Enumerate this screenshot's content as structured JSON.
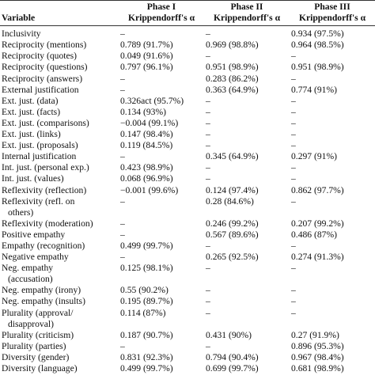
{
  "table": {
    "header": [
      [
        "Variable"
      ],
      [
        "Phase I",
        "Krippendorff's α"
      ],
      [
        "Phase II",
        "Krippendorff's α"
      ],
      [
        "Phase III",
        "Krippendorff's α"
      ]
    ],
    "rows": [
      [
        [
          "Inclusivity"
        ],
        "–",
        "–",
        "0.934 (97.5%)"
      ],
      [
        [
          "Reciprocity (mentions)"
        ],
        "0.789 (91.7%)",
        "0.969 (98.8%)",
        "0.964 (98.5%)"
      ],
      [
        [
          "Reciprocity (quotes)"
        ],
        "0.049 (91.6%)",
        "–",
        "–"
      ],
      [
        [
          "Reciprocity (questions)"
        ],
        "0.797 (96.1%)",
        "0.951 (98.9%)",
        "0.951 (98.9%)"
      ],
      [
        [
          "Reciprocity (answers)"
        ],
        "–",
        "0.283 (86.2%)",
        "–"
      ],
      [
        [
          "External justification"
        ],
        "–",
        "0.363 (64.9%)",
        "0.774 (91%)"
      ],
      [
        [
          "Ext. just. (data)"
        ],
        "0.326act (95.7%)",
        "–",
        "–"
      ],
      [
        [
          "Ext. just. (facts)"
        ],
        "0.134 (93%)",
        "–",
        "–"
      ],
      [
        [
          "Ext. just. (comparisons)"
        ],
        "−0.004 (99.1%)",
        "–",
        "–"
      ],
      [
        [
          "Ext. just. (links)"
        ],
        "0.147 (98.4%)",
        "–",
        "–"
      ],
      [
        [
          "Ext. just. (proposals)"
        ],
        "0.119 (84.5%)",
        "–",
        "–"
      ],
      [
        [
          "Internal justification"
        ],
        "–",
        "0.345 (64.9%)",
        "0.297 (91%)"
      ],
      [
        [
          "Int. just. (personal exp.)"
        ],
        "0.423 (98.9%)",
        "–",
        "–"
      ],
      [
        [
          "Int. just. (values)"
        ],
        "0.068 (96.9%)",
        "–",
        "–"
      ],
      [
        [
          "Reflexivity (reflection)"
        ],
        "−0.001 (99.6%)",
        "0.124 (97.4%)",
        "0.862 (97.7%)"
      ],
      [
        [
          "Reflexivity (refl. on",
          "others)"
        ],
        "–",
        "0.28 (84.6%)",
        "–"
      ],
      [
        [
          "Reflexivity (moderation)"
        ],
        "–",
        "0.246 (99.2%)",
        "0.207 (99.2%)"
      ],
      [
        [
          "Positive empathy"
        ],
        "–",
        "0.567 (89.6%)",
        "0.486 (87%)"
      ],
      [
        [
          "Empathy (recognition)"
        ],
        "0.499 (99.7%)",
        "–",
        "–"
      ],
      [
        [
          "Negative empathy"
        ],
        "–",
        "0.265 (92.5%)",
        "0.274 (91.3%)"
      ],
      [
        [
          "Neg. empathy",
          "(accusation)"
        ],
        "0.125 (98.1%)",
        "–",
        "–"
      ],
      [
        [
          "Neg. empathy (irony)"
        ],
        "0.55 (90.2%)",
        "–",
        "–"
      ],
      [
        [
          "Neg. empathy (insults)"
        ],
        "0.195 (89.7%)",
        "–",
        "–"
      ],
      [
        [
          "Plurality (approval/",
          "disapproval)"
        ],
        "0.114 (87%)",
        "–",
        "–"
      ],
      [
        [
          "Plurality (criticism)"
        ],
        "0.187 (90.7%)",
        "0.431 (90%)",
        "0.27 (91.9%)"
      ],
      [
        [
          "Plurality (parties)"
        ],
        "–",
        "–",
        "0.896 (95.3%)"
      ],
      [
        [
          "Diversity (gender)"
        ],
        "0.831 (92.3%)",
        "0.794 (90.4%)",
        "0.967 (98.4%)"
      ],
      [
        [
          "Diversity (language)"
        ],
        "0.499 (99.7%)",
        "0.699 (99.7%)",
        "0.681 (98.9%)"
      ]
    ]
  }
}
